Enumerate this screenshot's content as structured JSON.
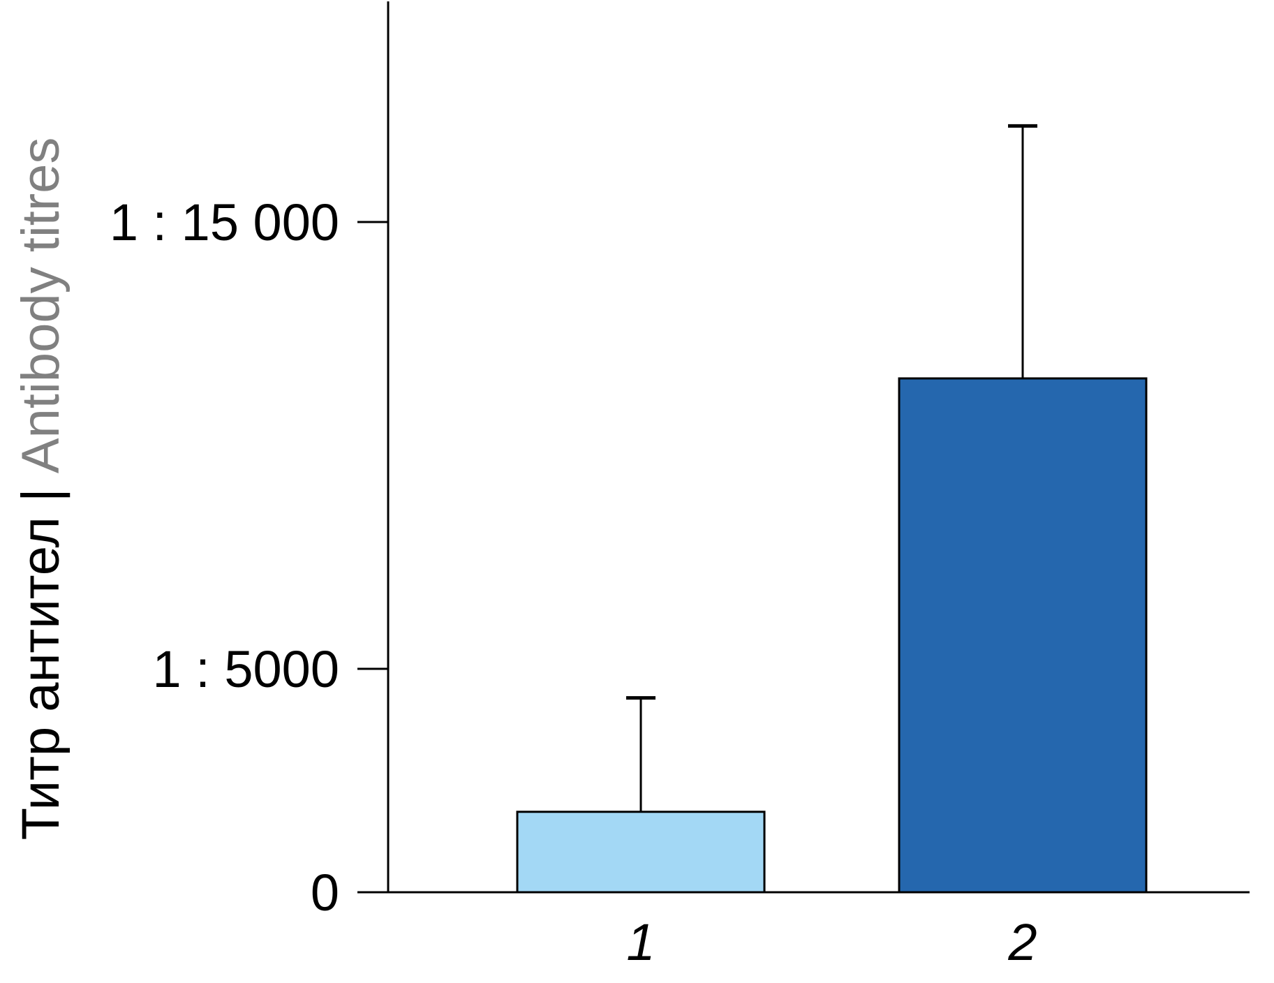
{
  "chart_data": {
    "type": "bar",
    "categories": [
      "1",
      "2"
    ],
    "values": [
      1800,
      11500
    ],
    "error_upper": [
      4350,
      17150
    ],
    "ylim": [
      0,
      20000
    ],
    "yticks": [
      {
        "value": 0,
        "label": "0"
      },
      {
        "value": 5000,
        "label": "1 : 5000"
      },
      {
        "value": 15000,
        "label": "1 : 15 000"
      }
    ],
    "ylabel": {
      "primary": "Титр антител",
      "separator": " | ",
      "secondary": "Antibody titres"
    },
    "xlabel": "",
    "title": "",
    "grid": false,
    "colors": {
      "bars": [
        "#a3d8f5",
        "#2567ae"
      ],
      "axis": "#000000",
      "ylabel_primary": "#000000",
      "ylabel_secondary": "#808080"
    }
  }
}
